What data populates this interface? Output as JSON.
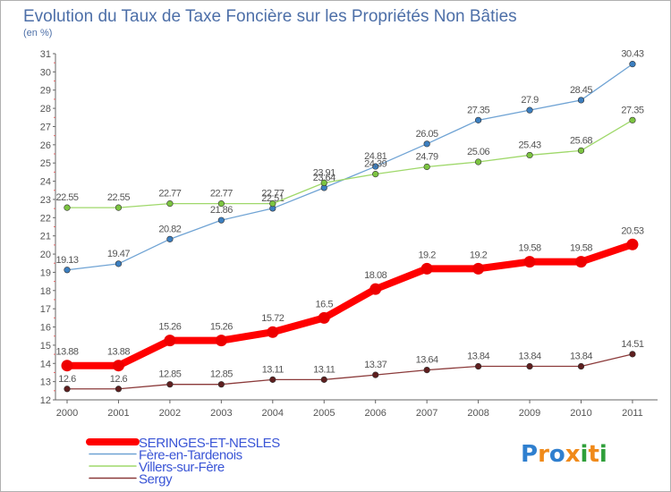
{
  "chart_data": {
    "type": "line",
    "title": "Evolution du Taux de Taxe Foncière sur les Propriétés Non Bâties",
    "subtitle": "(en %)",
    "x": [
      "2000",
      "2001",
      "2002",
      "2003",
      "2004",
      "2005",
      "2006",
      "2007",
      "2008",
      "2009",
      "2010",
      "2011"
    ],
    "ylim": [
      12,
      31
    ],
    "yticks": [
      "12",
      "13",
      "14",
      "15",
      "16",
      "17",
      "18",
      "19",
      "20",
      "21",
      "22",
      "23",
      "24",
      "25",
      "26",
      "27",
      "28",
      "29",
      "30",
      "31"
    ],
    "grid": false,
    "legend": "bottom-left",
    "series": [
      {
        "name": "Fère-en-Tardenois",
        "color": "#6fa3d4",
        "marker": "#3c7fc0",
        "values": [
          19.13,
          19.47,
          20.82,
          21.86,
          22.51,
          23.64,
          24.81,
          26.05,
          27.35,
          27.9,
          28.45,
          30.43
        ],
        "labels": [
          "19.13",
          "19.47",
          "20.82",
          "21.86",
          "22.51",
          "23.64",
          "24.81",
          "26.05",
          "27.35",
          "27.9",
          "28.45",
          "30.43"
        ]
      },
      {
        "name": "Villers-sur-Fère",
        "color": "#9fd86a",
        "marker": "#7cc441",
        "values": [
          22.55,
          22.55,
          22.77,
          22.77,
          22.77,
          23.91,
          24.39,
          24.79,
          25.06,
          25.43,
          25.68,
          27.35
        ],
        "labels": [
          "22.55",
          "22.55",
          "22.77",
          "22.77",
          "22.77",
          "23.91",
          "24.39",
          "24.79",
          "25.06",
          "25.43",
          "25.68",
          "27.35"
        ]
      },
      {
        "name": "Sergy",
        "color": "#8b3a3a",
        "marker": "#5e1f1f",
        "values": [
          12.6,
          12.6,
          12.85,
          12.85,
          13.11,
          13.11,
          13.37,
          13.64,
          13.84,
          13.84,
          13.84,
          14.51
        ],
        "labels": [
          "12.6",
          "12.6",
          "12.85",
          "12.85",
          "13.11",
          "13.11",
          "13.37",
          "13.64",
          "13.84",
          "13.84",
          "13.84",
          "14.51"
        ]
      },
      {
        "name": "SERINGES-ET-NESLES",
        "color": "#ff0000",
        "marker": "#ee0000",
        "emphasis": true,
        "values": [
          13.88,
          13.88,
          15.26,
          15.26,
          15.72,
          16.5,
          18.08,
          19.2,
          19.2,
          19.58,
          19.58,
          20.53
        ],
        "labels": [
          "13.88",
          "13.88",
          "15.26",
          "15.26",
          "15.72",
          "16.5",
          "18.08",
          "19.2",
          "19.2",
          "19.58",
          "19.58",
          "20.53"
        ]
      }
    ],
    "legend_order": [
      "SERINGES-ET-NESLES",
      "Fère-en-Tardenois",
      "Villers-sur-Fère",
      "Sergy"
    ]
  },
  "logo": {
    "text": "Proxiti"
  },
  "colors": {
    "title": "#4d6fa8",
    "legend_text": "#3a55d6",
    "axis": "#666666"
  }
}
